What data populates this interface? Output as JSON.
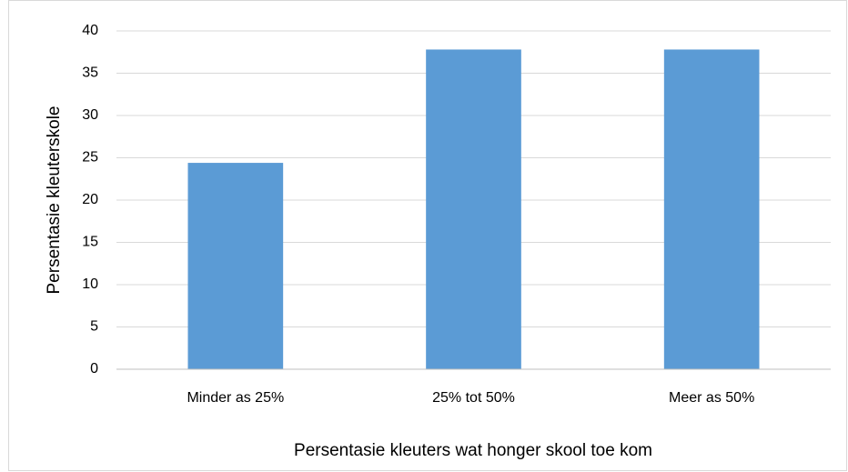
{
  "chart_data": {
    "type": "bar",
    "categories": [
      "Minder as 25%",
      "25% tot 50%",
      "Meer as 50%"
    ],
    "values": [
      24.4,
      37.8,
      37.8
    ],
    "color": "#5b9bd5",
    "xlabel": "Persentasie kleuters wat honger skool toe kom",
    "ylabel": "Persentasie kleuterskole",
    "ylim": [
      0,
      40
    ],
    "yticks": [
      0,
      5,
      10,
      15,
      20,
      25,
      30,
      35,
      40
    ],
    "grid": true
  }
}
